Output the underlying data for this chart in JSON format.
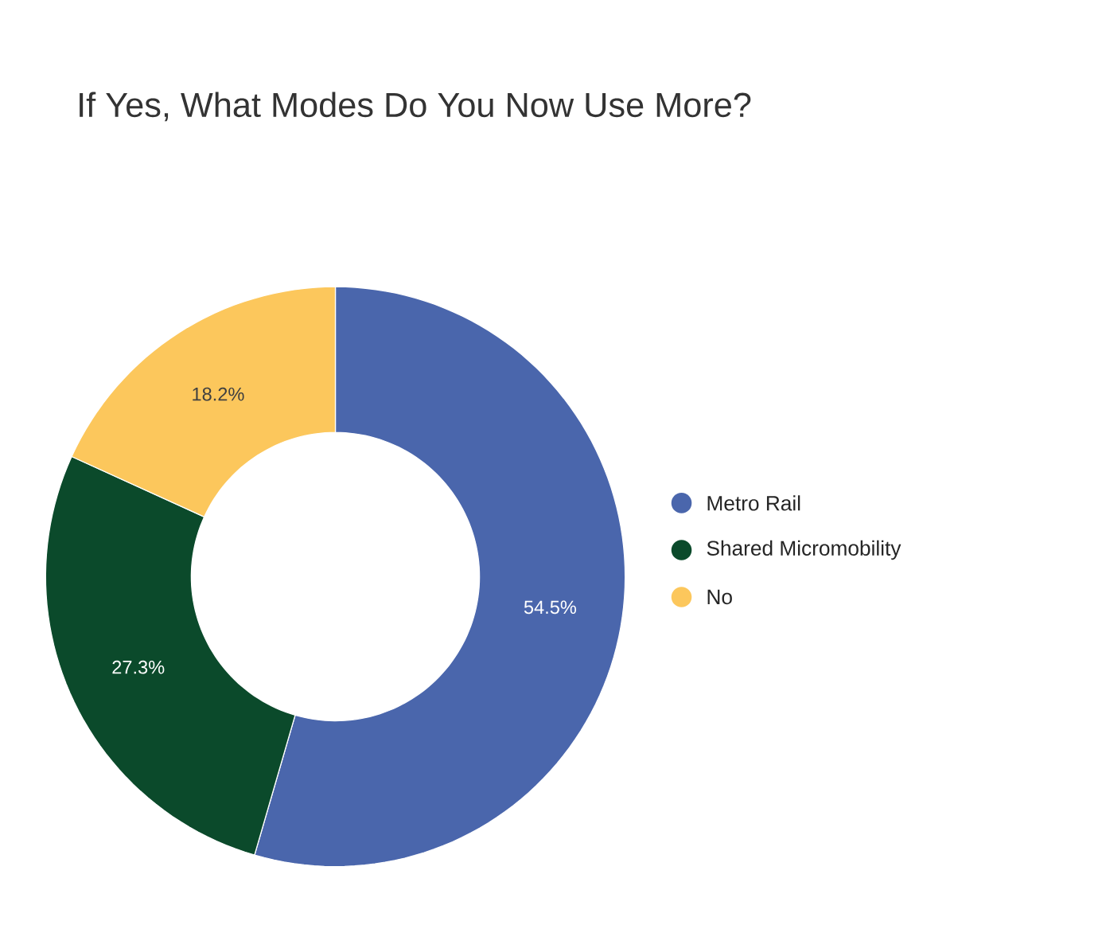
{
  "chart_data": {
    "type": "donut",
    "title": "If Yes, What Modes Do You Now Use More?",
    "categories": [
      "Metro Rail",
      "Shared Micromobility",
      "No"
    ],
    "values": [
      54.5,
      27.3,
      18.2
    ],
    "colors": [
      "#4a66ac",
      "#0b4a2b",
      "#fcc75c"
    ],
    "value_labels": [
      "54.5%",
      "27.3%",
      "18.2%"
    ],
    "legend": "right"
  }
}
